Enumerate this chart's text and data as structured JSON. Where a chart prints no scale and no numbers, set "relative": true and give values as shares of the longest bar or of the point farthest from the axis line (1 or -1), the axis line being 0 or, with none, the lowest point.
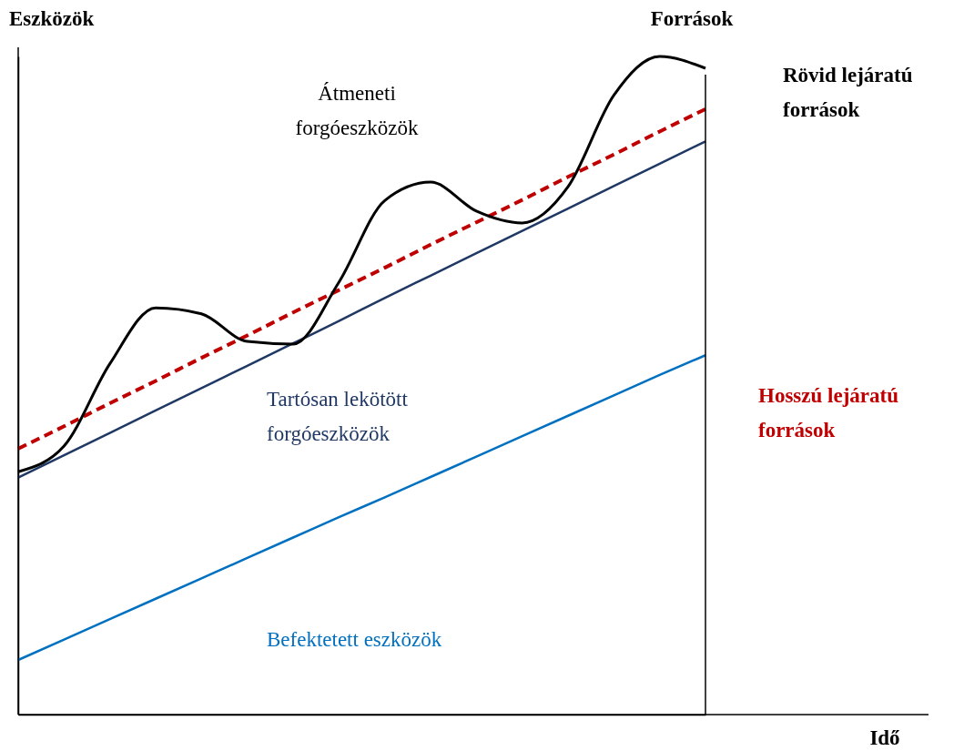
{
  "chart_data": {
    "type": "line",
    "relative": true,
    "ylabel": "Eszközök",
    "y2label": "Források",
    "categories": [
      null,
      null,
      null,
      null,
      null,
      null,
      null,
      null,
      null,
      null,
      null,
      null,
      null,
      null,
      null,
      null
    ],
    "series": [
      {
        "color": "#0070c0",
        "line_style": "solid",
        "name": "Befektetett eszközök",
        "values": [
          0.083,
          0.114,
          0.145,
          0.176,
          0.207,
          0.238,
          0.269,
          0.3,
          0.33,
          0.361,
          0.392,
          0.423,
          0.454,
          0.485,
          0.516,
          0.546
        ]
      },
      {
        "color": "#1f3864",
        "line_style": "solid",
        "name": "Tartósan lekötött forgóeszközök",
        "values": [
          0.36,
          0.394,
          0.428,
          0.462,
          0.496,
          0.53,
          0.564,
          0.598,
          0.633,
          0.667,
          0.701,
          0.735,
          0.769,
          0.803,
          0.837,
          0.871
        ]
      },
      {
        "color": "#c00000",
        "line_style": "dashed",
        "values": [
          0.404,
          0.438,
          0.473,
          0.507,
          0.542,
          0.576,
          0.611,
          0.645,
          0.679,
          0.714,
          0.748,
          0.782,
          0.817,
          0.851,
          0.886,
          0.92
        ]
      },
      {
        "color": "#000000",
        "line_style": "solid",
        "values": [
          0.369,
          0.408,
          0.533,
          0.618,
          0.609,
          0.567,
          0.563,
          0.657,
          0.781,
          0.809,
          0.765,
          0.747,
          0.802,
          0.941,
          1.0,
          0.982
        ]
      }
    ],
    "annotations": [
      "Átmeneti forgóeszközök",
      "Rövid lejáratú források",
      "Hosszú lejáratú források",
      "Idő"
    ],
    "grid": false
  }
}
